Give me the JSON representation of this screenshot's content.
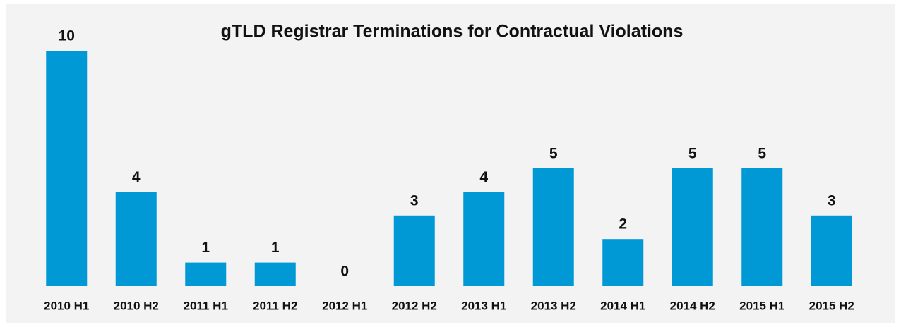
{
  "chart_data": {
    "type": "bar",
    "title": "gTLD Registrar Terminations for Contractual Violations",
    "categories": [
      "2010 H1",
      "2010 H2",
      "2011 H1",
      "2011 H2",
      "2012 H1",
      "2012 H2",
      "2013 H1",
      "2013 H2",
      "2014 H1",
      "2014 H2",
      "2015 H1",
      "2015 H2"
    ],
    "values": [
      10,
      4,
      1,
      1,
      0,
      3,
      4,
      5,
      2,
      5,
      5,
      3
    ],
    "color": "#0099d6",
    "ylim": [
      0,
      10
    ]
  }
}
